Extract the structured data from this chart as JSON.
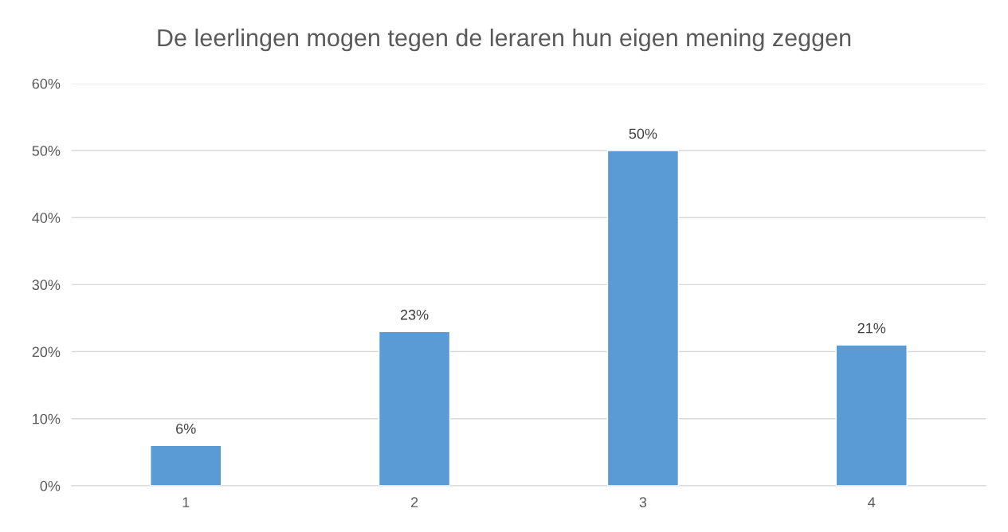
{
  "chart_data": {
    "type": "bar",
    "title": "De leerlingen mogen tegen de leraren hun eigen mening zeggen",
    "categories": [
      "1",
      "2",
      "3",
      "4"
    ],
    "values": [
      6,
      23,
      50,
      21
    ],
    "value_labels": [
      "6%",
      "23%",
      "50%",
      "21%"
    ],
    "color": "#5b9bd5",
    "ylim": [
      0,
      60
    ],
    "yticks": [
      {
        "value": 0,
        "label": "0%"
      },
      {
        "value": 10,
        "label": "10%"
      },
      {
        "value": 20,
        "label": "20%"
      },
      {
        "value": 30,
        "label": "30%"
      },
      {
        "value": 40,
        "label": "40%"
      },
      {
        "value": 50,
        "label": "50%"
      },
      {
        "value": 60,
        "label": "60%"
      }
    ],
    "grid": "y",
    "legend": false
  }
}
